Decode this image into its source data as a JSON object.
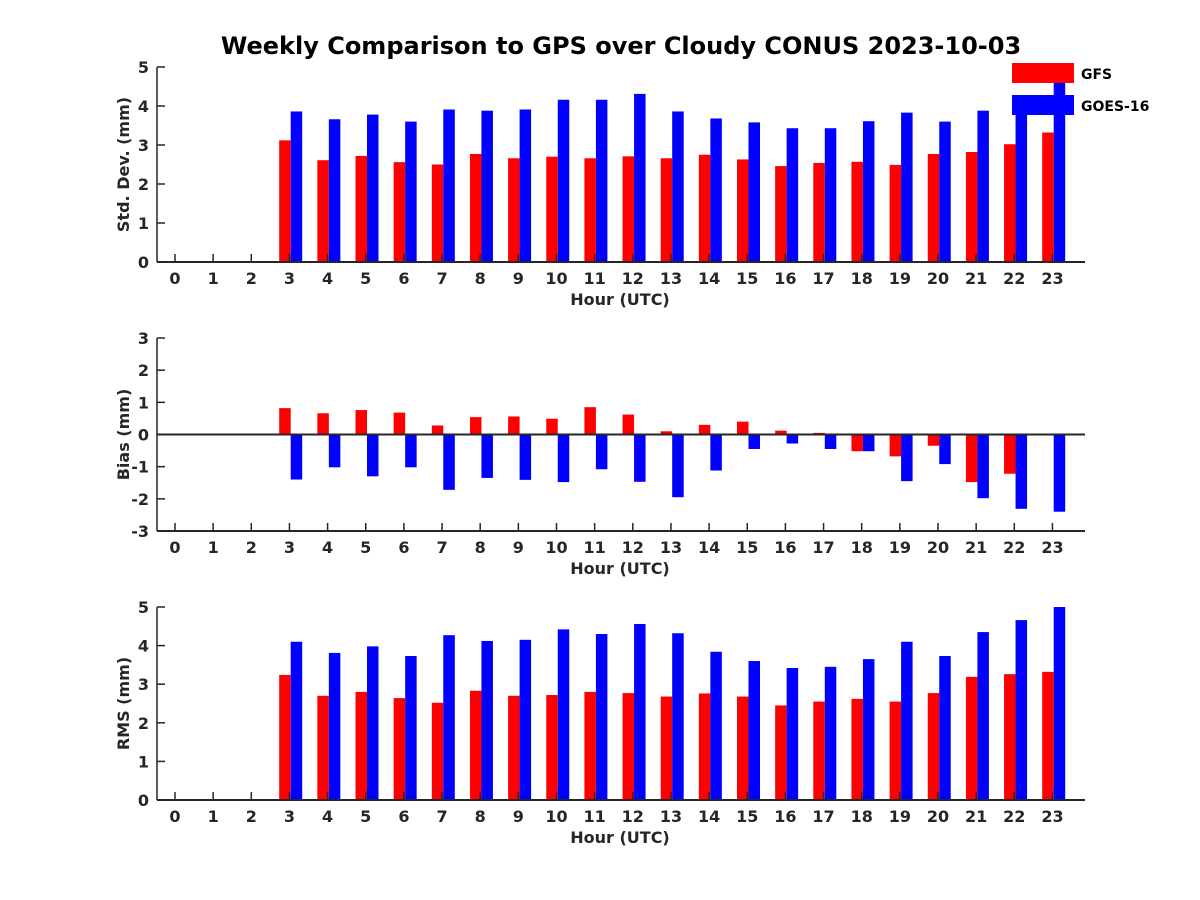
{
  "title": "Weekly Comparison to GPS over Cloudy CONUS 2023-10-03",
  "legend": {
    "placement": "top-right",
    "entries": [
      {
        "name": "GFS",
        "color": "#ff0000"
      },
      {
        "name": "GOES-16",
        "color": "#0000ff"
      }
    ]
  },
  "chart_data": [
    {
      "type": "bar",
      "xlabel": "Hour (UTC)",
      "ylabel": "Std. Dev. (mm)",
      "ylim": [
        0,
        5
      ],
      "yticks": [
        "0",
        "1",
        "2",
        "3",
        "4",
        "5"
      ],
      "categories": [
        "0",
        "1",
        "2",
        "3",
        "4",
        "5",
        "6",
        "7",
        "8",
        "9",
        "10",
        "11",
        "12",
        "13",
        "14",
        "15",
        "16",
        "17",
        "18",
        "19",
        "20",
        "21",
        "22",
        "23"
      ],
      "series": [
        {
          "name": "GFS",
          "color": "#ff0000",
          "values": [
            0,
            0,
            0,
            3.12,
            2.61,
            2.72,
            2.56,
            2.5,
            2.77,
            2.66,
            2.7,
            2.66,
            2.71,
            2.66,
            2.75,
            2.63,
            2.46,
            2.54,
            2.57,
            2.49,
            2.77,
            2.82,
            3.02,
            3.32
          ]
        },
        {
          "name": "GOES-16",
          "color": "#0000ff",
          "values": [
            0,
            0,
            0,
            3.86,
            3.66,
            3.78,
            3.6,
            3.91,
            3.88,
            3.91,
            4.16,
            4.16,
            4.31,
            3.86,
            3.68,
            3.58,
            3.43,
            3.43,
            3.61,
            3.83,
            3.6,
            3.88,
            4.06,
            4.68
          ]
        }
      ]
    },
    {
      "type": "bar",
      "xlabel": "Hour (UTC)",
      "ylabel": "Bias (mm)",
      "ylim": [
        -3,
        3
      ],
      "yticks": [
        "-3",
        "-2",
        "-1",
        "0",
        "1",
        "2",
        "3"
      ],
      "categories": [
        "0",
        "1",
        "2",
        "3",
        "4",
        "5",
        "6",
        "7",
        "8",
        "9",
        "10",
        "11",
        "12",
        "13",
        "14",
        "15",
        "16",
        "17",
        "18",
        "19",
        "20",
        "21",
        "22",
        "23"
      ],
      "series": [
        {
          "name": "GFS",
          "color": "#ff0000",
          "values": [
            0,
            0,
            0,
            0.82,
            0.66,
            0.76,
            0.68,
            0.28,
            0.54,
            0.56,
            0.49,
            0.85,
            0.62,
            0.1,
            0.3,
            0.4,
            0.12,
            0.05,
            -0.52,
            -0.68,
            -0.35,
            -1.48,
            -1.22,
            0
          ]
        },
        {
          "name": "GOES-16",
          "color": "#0000ff",
          "values": [
            0,
            0,
            0,
            -1.4,
            -1.02,
            -1.3,
            -1.02,
            -1.72,
            -1.35,
            -1.41,
            -1.48,
            -1.08,
            -1.47,
            -1.95,
            -1.12,
            -0.45,
            -0.28,
            -0.45,
            -0.52,
            -1.45,
            -0.92,
            -1.98,
            -2.31,
            -2.4
          ]
        }
      ]
    },
    {
      "type": "bar",
      "xlabel": "Hour (UTC)",
      "ylabel": "RMS (mm)",
      "ylim": [
        0,
        5
      ],
      "yticks": [
        "0",
        "1",
        "2",
        "3",
        "4",
        "5"
      ],
      "categories": [
        "0",
        "1",
        "2",
        "3",
        "4",
        "5",
        "6",
        "7",
        "8",
        "9",
        "10",
        "11",
        "12",
        "13",
        "14",
        "15",
        "16",
        "17",
        "18",
        "19",
        "20",
        "21",
        "22",
        "23"
      ],
      "series": [
        {
          "name": "GFS",
          "color": "#ff0000",
          "values": [
            0,
            0,
            0,
            3.24,
            2.7,
            2.8,
            2.64,
            2.52,
            2.83,
            2.7,
            2.72,
            2.8,
            2.77,
            2.68,
            2.76,
            2.68,
            2.45,
            2.55,
            2.62,
            2.55,
            2.77,
            3.19,
            3.26,
            3.32
          ]
        },
        {
          "name": "GOES-16",
          "color": "#0000ff",
          "values": [
            0,
            0,
            0,
            4.1,
            3.81,
            3.98,
            3.73,
            4.27,
            4.12,
            4.15,
            4.42,
            4.3,
            4.56,
            4.32,
            3.84,
            3.6,
            3.42,
            3.45,
            3.65,
            4.1,
            3.73,
            4.35,
            4.66,
            5.0
          ]
        }
      ]
    }
  ]
}
